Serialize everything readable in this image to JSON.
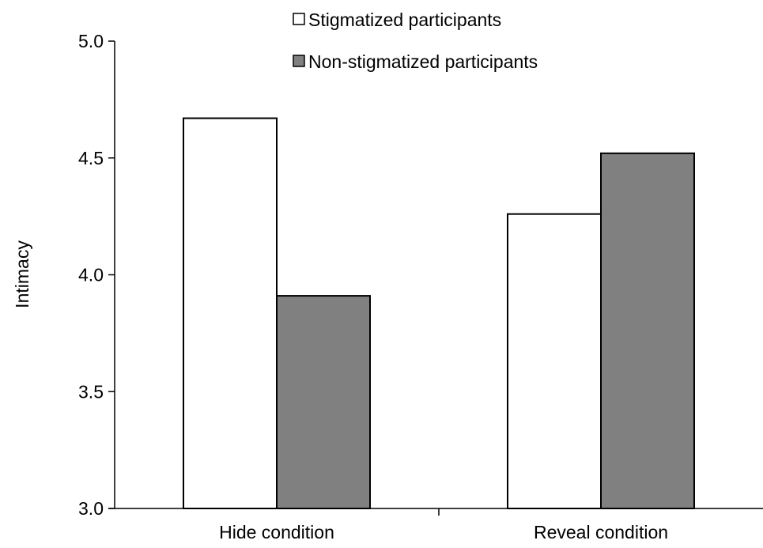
{
  "chart_data": {
    "type": "bar",
    "title": "",
    "xlabel": "",
    "ylabel": "Intimacy",
    "ylim": [
      3.0,
      5.0
    ],
    "yticks": [
      "3.0",
      "3.5",
      "4.0",
      "4.5",
      "5.0"
    ],
    "categories": [
      "Hide condition",
      "Reveal condition"
    ],
    "series": [
      {
        "name": "Stigmatized participants",
        "values": [
          4.67,
          4.26
        ],
        "color": "#ffffff"
      },
      {
        "name": "Non-stigmatized participants",
        "values": [
          3.91,
          4.52
        ],
        "color": "#808080"
      }
    ],
    "grid": false,
    "legend_position": "top-right"
  }
}
